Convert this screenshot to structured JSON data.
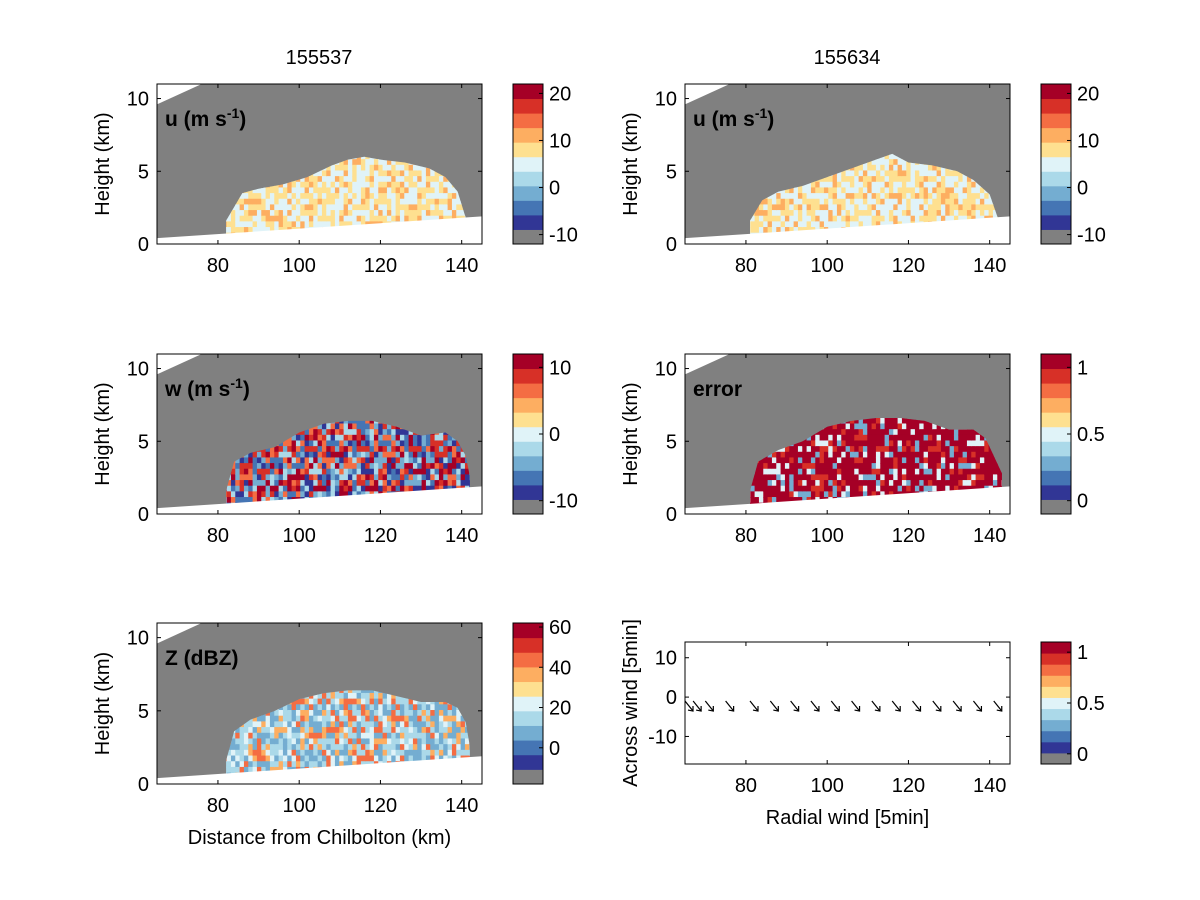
{
  "titles": {
    "left": "155537",
    "right": "155634"
  },
  "colors": {
    "background_gray": "#808080",
    "ground": "#ffffff",
    "palette": [
      "#808080",
      "#313695",
      "#4575b4",
      "#74add1",
      "#abd9e9",
      "#e0f3f8",
      "#fee090",
      "#fdae61",
      "#f46d43",
      "#d73027",
      "#a50026"
    ]
  },
  "chart_data": [
    {
      "type": "heatmap",
      "panel": "u-left",
      "label": "u (m s",
      "label_sup": "-1",
      "label_end": ")",
      "ylabel": "Height (km)",
      "xlabel": "",
      "xlim": [
        65,
        145
      ],
      "ylim": [
        0,
        11
      ],
      "xticks": [
        "80",
        "100",
        "120",
        "140"
      ],
      "yticks": [
        "0",
        "5",
        "10"
      ],
      "colorbar": {
        "ticks": [
          "20",
          "10",
          "0",
          "-10"
        ],
        "range": [
          -12,
          22
        ]
      },
      "mask_top": [
        {
          "x": 82,
          "y": 1.6
        },
        {
          "x": 86,
          "y": 3.5
        },
        {
          "x": 90,
          "y": 3.8
        },
        {
          "x": 96,
          "y": 4.1
        },
        {
          "x": 102,
          "y": 4.6
        },
        {
          "x": 108,
          "y": 5.4
        },
        {
          "x": 112,
          "y": 5.8
        },
        {
          "x": 116,
          "y": 6.0
        },
        {
          "x": 120,
          "y": 5.8
        },
        {
          "x": 126,
          "y": 5.6
        },
        {
          "x": 132,
          "y": 5.2
        },
        {
          "x": 136,
          "y": 4.6
        },
        {
          "x": 139,
          "y": 3.6
        },
        {
          "x": 141,
          "y": 1.8
        }
      ]
    },
    {
      "type": "heatmap",
      "panel": "u-right",
      "label": "u (m s",
      "label_sup": "-1",
      "label_end": ")",
      "ylabel": "Height (km)",
      "xlabel": "",
      "xlim": [
        65,
        145
      ],
      "ylim": [
        0,
        11
      ],
      "xticks": [
        "80",
        "100",
        "120",
        "140"
      ],
      "yticks": [
        "0",
        "5",
        "10"
      ],
      "colorbar": {
        "ticks": [
          "20",
          "10",
          "0",
          "-10"
        ],
        "range": [
          -12,
          22
        ]
      },
      "mask_top": [
        {
          "x": 81,
          "y": 1.6
        },
        {
          "x": 84,
          "y": 3.0
        },
        {
          "x": 88,
          "y": 3.6
        },
        {
          "x": 94,
          "y": 4.0
        },
        {
          "x": 100,
          "y": 4.6
        },
        {
          "x": 106,
          "y": 5.2
        },
        {
          "x": 112,
          "y": 5.8
        },
        {
          "x": 116,
          "y": 6.2
        },
        {
          "x": 120,
          "y": 5.6
        },
        {
          "x": 126,
          "y": 5.4
        },
        {
          "x": 132,
          "y": 5.0
        },
        {
          "x": 136,
          "y": 4.4
        },
        {
          "x": 140,
          "y": 3.4
        },
        {
          "x": 142,
          "y": 1.8
        }
      ]
    },
    {
      "type": "heatmap",
      "panel": "w-left",
      "label": "w (m s",
      "label_sup": "-1",
      "label_end": ")",
      "ylabel": "Height (km)",
      "xlabel": "",
      "xlim": [
        65,
        145
      ],
      "ylim": [
        0,
        11
      ],
      "xticks": [
        "80",
        "100",
        "120",
        "140"
      ],
      "yticks": [
        "0",
        "5",
        "10"
      ],
      "colorbar": {
        "ticks": [
          "10",
          "0",
          "-10"
        ],
        "range": [
          -12,
          12
        ]
      },
      "mask_top": [
        {
          "x": 82,
          "y": 1.6
        },
        {
          "x": 84,
          "y": 3.6
        },
        {
          "x": 88,
          "y": 4.2
        },
        {
          "x": 94,
          "y": 4.6
        },
        {
          "x": 100,
          "y": 5.6
        },
        {
          "x": 106,
          "y": 6.2
        },
        {
          "x": 112,
          "y": 6.4
        },
        {
          "x": 118,
          "y": 6.4
        },
        {
          "x": 124,
          "y": 6.0
        },
        {
          "x": 130,
          "y": 5.4
        },
        {
          "x": 136,
          "y": 5.6
        },
        {
          "x": 139,
          "y": 5.0
        },
        {
          "x": 141,
          "y": 4.0
        },
        {
          "x": 142,
          "y": 2.6
        }
      ]
    },
    {
      "type": "heatmap",
      "panel": "error",
      "label": "error",
      "label_sup": "",
      "label_end": "",
      "ylabel": "Height (km)",
      "xlabel": "",
      "xlim": [
        65,
        145
      ],
      "ylim": [
        0,
        11
      ],
      "xticks": [
        "80",
        "100",
        "120",
        "140"
      ],
      "yticks": [
        "0",
        "5",
        "10"
      ],
      "colorbar": {
        "ticks": [
          "1",
          "0.5",
          "0"
        ],
        "range": [
          -0.1,
          1.1
        ]
      },
      "mask_top": [
        {
          "x": 81,
          "y": 1.6
        },
        {
          "x": 83,
          "y": 3.6
        },
        {
          "x": 88,
          "y": 4.4
        },
        {
          "x": 94,
          "y": 5.0
        },
        {
          "x": 100,
          "y": 6.0
        },
        {
          "x": 106,
          "y": 6.4
        },
        {
          "x": 112,
          "y": 6.6
        },
        {
          "x": 118,
          "y": 6.6
        },
        {
          "x": 124,
          "y": 6.4
        },
        {
          "x": 130,
          "y": 5.8
        },
        {
          "x": 136,
          "y": 5.8
        },
        {
          "x": 139,
          "y": 5.2
        },
        {
          "x": 141,
          "y": 4.0
        },
        {
          "x": 143,
          "y": 2.8
        }
      ]
    },
    {
      "type": "heatmap",
      "panel": "Z",
      "label": "Z (dBZ)",
      "label_sup": "",
      "label_end": "",
      "ylabel": "Height (km)",
      "xlabel": "Distance from Chilbolton (km)",
      "xlim": [
        65,
        145
      ],
      "ylim": [
        0,
        11
      ],
      "xticks": [
        "80",
        "100",
        "120",
        "140"
      ],
      "yticks": [
        "0",
        "5",
        "10"
      ],
      "colorbar": {
        "ticks": [
          "60",
          "40",
          "20",
          "0"
        ],
        "range": [
          -18,
          62
        ]
      },
      "mask_top": [
        {
          "x": 82,
          "y": 1.6
        },
        {
          "x": 84,
          "y": 3.6
        },
        {
          "x": 88,
          "y": 4.4
        },
        {
          "x": 94,
          "y": 5.0
        },
        {
          "x": 100,
          "y": 5.8
        },
        {
          "x": 106,
          "y": 6.2
        },
        {
          "x": 112,
          "y": 6.4
        },
        {
          "x": 118,
          "y": 6.4
        },
        {
          "x": 124,
          "y": 6.0
        },
        {
          "x": 130,
          "y": 5.6
        },
        {
          "x": 136,
          "y": 5.6
        },
        {
          "x": 139,
          "y": 5.2
        },
        {
          "x": 141,
          "y": 4.2
        },
        {
          "x": 142,
          "y": 2.6
        }
      ]
    },
    {
      "type": "scatter",
      "panel": "wind",
      "label": "",
      "ylabel": "Across wind [5min]",
      "xlabel": "Radial wind [5min]",
      "xlim": [
        65,
        145
      ],
      "ylim": [
        -17,
        14
      ],
      "xticks": [
        "80",
        "100",
        "120",
        "140"
      ],
      "yticks": [
        "10",
        "0",
        "-10"
      ],
      "colorbar": {
        "ticks": [
          "1",
          "0.5",
          "0"
        ],
        "range": [
          -0.1,
          1.1
        ]
      },
      "x": [
        65,
        67,
        70,
        75,
        81,
        86,
        91,
        96,
        101,
        106,
        111,
        116,
        121,
        126,
        131,
        136,
        141
      ],
      "y": [
        -1,
        -1,
        -1,
        -1,
        -1,
        -1,
        -1,
        -1,
        -1,
        -1,
        -1,
        -1,
        -1,
        -1,
        -1,
        -1,
        -1
      ]
    }
  ]
}
